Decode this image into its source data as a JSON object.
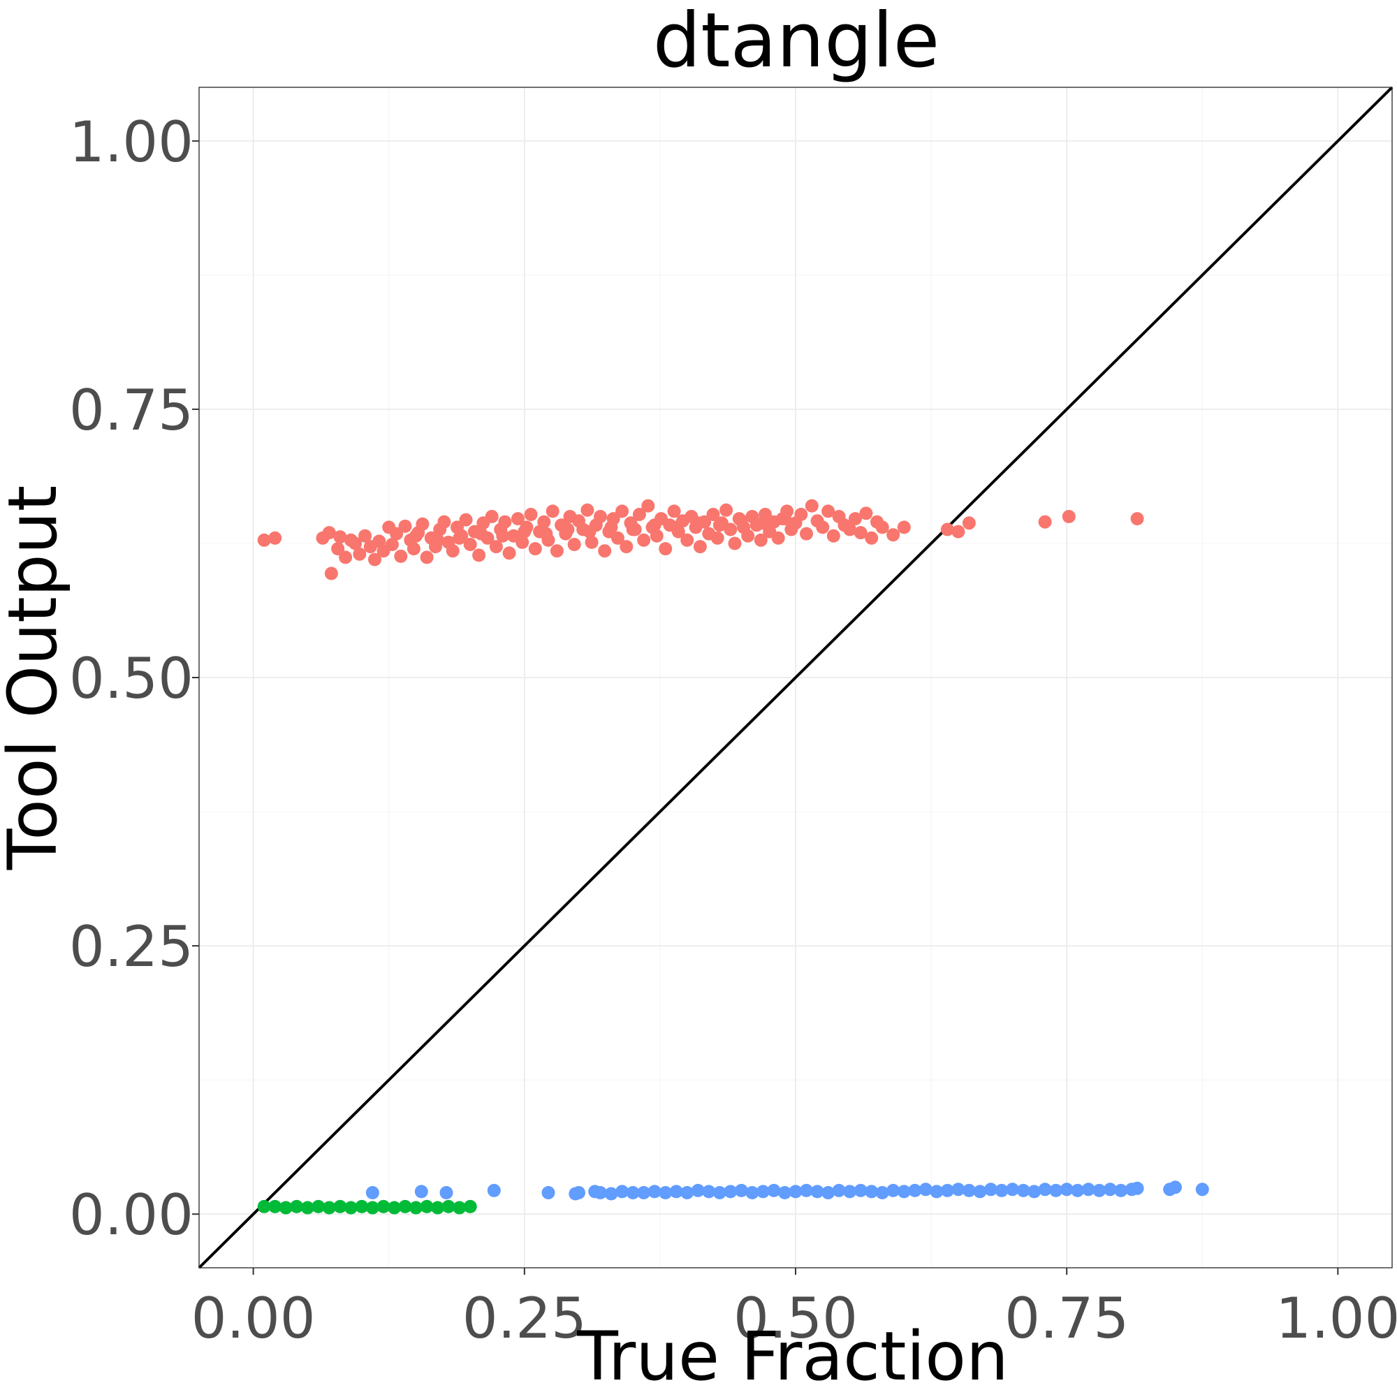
{
  "chart_data": {
    "type": "scatter",
    "title": "dtangle",
    "xlabel": "True Fraction",
    "ylabel": "Tool Output",
    "xlim": [
      -0.05,
      1.05
    ],
    "ylim": [
      -0.05,
      1.05
    ],
    "x_ticks": [
      0.0,
      0.25,
      0.5,
      0.75,
      1.0
    ],
    "y_ticks": [
      0.0,
      0.25,
      0.5,
      0.75,
      1.0
    ],
    "x_tick_labels": [
      "0.00",
      "0.25",
      "0.50",
      "0.75",
      "1.00"
    ],
    "y_tick_labels": [
      "0.00",
      "0.25",
      "0.50",
      "0.75",
      "1.00"
    ],
    "grid": true,
    "legend": "none",
    "reference_line": {
      "slope": 1,
      "intercept": 0,
      "color": "#000000"
    },
    "series": [
      {
        "color": "#F8766D",
        "points": [
          [
            0.064,
            0.63
          ],
          [
            0.07,
            0.635
          ],
          [
            0.072,
            0.597
          ],
          [
            0.078,
            0.62
          ],
          [
            0.08,
            0.631
          ],
          [
            0.085,
            0.612
          ],
          [
            0.09,
            0.628
          ],
          [
            0.094,
            0.625
          ],
          [
            0.098,
            0.615
          ],
          [
            0.103,
            0.632
          ],
          [
            0.108,
            0.622
          ],
          [
            0.112,
            0.61
          ],
          [
            0.116,
            0.627
          ],
          [
            0.12,
            0.618
          ],
          [
            0.125,
            0.64
          ],
          [
            0.128,
            0.624
          ],
          [
            0.132,
            0.634
          ],
          [
            0.136,
            0.613
          ],
          [
            0.14,
            0.641
          ],
          [
            0.145,
            0.628
          ],
          [
            0.148,
            0.62
          ],
          [
            0.152,
            0.635
          ],
          [
            0.156,
            0.643
          ],
          [
            0.16,
            0.612
          ],
          [
            0.164,
            0.63
          ],
          [
            0.168,
            0.622
          ],
          [
            0.172,
            0.638
          ],
          [
            0.176,
            0.645
          ],
          [
            0.18,
            0.626
          ],
          [
            0.184,
            0.618
          ],
          [
            0.188,
            0.64
          ],
          [
            0.192,
            0.632
          ],
          [
            0.196,
            0.647
          ],
          [
            0.2,
            0.624
          ],
          [
            0.204,
            0.636
          ],
          [
            0.208,
            0.614
          ],
          [
            0.212,
            0.644
          ],
          [
            0.216,
            0.63
          ],
          [
            0.22,
            0.65
          ],
          [
            0.224,
            0.622
          ],
          [
            0.228,
            0.638
          ],
          [
            0.232,
            0.645
          ],
          [
            0.236,
            0.616
          ],
          [
            0.24,
            0.632
          ],
          [
            0.244,
            0.648
          ],
          [
            0.248,
            0.626
          ],
          [
            0.252,
            0.64
          ],
          [
            0.256,
            0.652
          ],
          [
            0.26,
            0.62
          ],
          [
            0.264,
            0.636
          ],
          [
            0.268,
            0.645
          ],
          [
            0.272,
            0.628
          ],
          [
            0.276,
            0.655
          ],
          [
            0.28,
            0.618
          ],
          [
            0.284,
            0.642
          ],
          [
            0.288,
            0.634
          ],
          [
            0.292,
            0.65
          ],
          [
            0.296,
            0.624
          ],
          [
            0.3,
            0.646
          ],
          [
            0.304,
            0.638
          ],
          [
            0.308,
            0.656
          ],
          [
            0.312,
            0.626
          ],
          [
            0.316,
            0.642
          ],
          [
            0.32,
            0.65
          ],
          [
            0.324,
            0.618
          ],
          [
            0.328,
            0.636
          ],
          [
            0.332,
            0.648
          ],
          [
            0.336,
            0.63
          ],
          [
            0.34,
            0.655
          ],
          [
            0.344,
            0.622
          ],
          [
            0.348,
            0.644
          ],
          [
            0.352,
            0.638
          ],
          [
            0.356,
            0.652
          ],
          [
            0.36,
            0.628
          ],
          [
            0.364,
            0.66
          ],
          [
            0.368,
            0.64
          ],
          [
            0.372,
            0.632
          ],
          [
            0.376,
            0.648
          ],
          [
            0.38,
            0.62
          ],
          [
            0.384,
            0.642
          ],
          [
            0.388,
            0.655
          ],
          [
            0.392,
            0.636
          ],
          [
            0.396,
            0.646
          ],
          [
            0.4,
            0.628
          ],
          [
            0.404,
            0.65
          ],
          [
            0.408,
            0.64
          ],
          [
            0.412,
            0.622
          ],
          [
            0.416,
            0.645
          ],
          [
            0.42,
            0.634
          ],
          [
            0.424,
            0.652
          ],
          [
            0.428,
            0.63
          ],
          [
            0.432,
            0.644
          ],
          [
            0.436,
            0.656
          ],
          [
            0.44,
            0.638
          ],
          [
            0.444,
            0.625
          ],
          [
            0.448,
            0.648
          ],
          [
            0.452,
            0.64
          ],
          [
            0.456,
            0.632
          ],
          [
            0.46,
            0.65
          ],
          [
            0.464,
            0.642
          ],
          [
            0.468,
            0.628
          ],
          [
            0.472,
            0.652
          ],
          [
            0.476,
            0.636
          ],
          [
            0.48,
            0.645
          ],
          [
            0.484,
            0.63
          ],
          [
            0.488,
            0.648
          ],
          [
            0.492,
            0.655
          ],
          [
            0.496,
            0.638
          ],
          [
            0.5,
            0.644
          ],
          [
            0.505,
            0.652
          ],
          [
            0.51,
            0.634
          ],
          [
            0.515,
            0.66
          ],
          [
            0.52,
            0.646
          ],
          [
            0.525,
            0.64
          ],
          [
            0.53,
            0.655
          ],
          [
            0.535,
            0.632
          ],
          [
            0.54,
            0.65
          ],
          [
            0.545,
            0.642
          ],
          [
            0.55,
            0.638
          ],
          [
            0.555,
            0.648
          ],
          [
            0.56,
            0.635
          ],
          [
            0.565,
            0.653
          ],
          [
            0.57,
            0.63
          ],
          [
            0.575,
            0.645
          ],
          [
            0.58,
            0.64
          ],
          [
            0.59,
            0.633
          ],
          [
            0.6,
            0.64
          ],
          [
            0.64,
            0.638
          ],
          [
            0.65,
            0.636
          ],
          [
            0.66,
            0.644
          ],
          [
            0.73,
            0.645
          ],
          [
            0.752,
            0.65
          ],
          [
            0.815,
            0.648
          ],
          [
            0.01,
            0.628
          ],
          [
            0.02,
            0.63
          ],
          [
            0.15,
            0.632
          ],
          [
            0.17,
            0.628
          ],
          [
            0.19,
            0.63
          ],
          [
            0.21,
            0.634
          ],
          [
            0.23,
            0.632
          ],
          [
            0.25,
            0.636
          ],
          [
            0.27,
            0.634
          ],
          [
            0.29,
            0.638
          ],
          [
            0.31,
            0.636
          ],
          [
            0.33,
            0.64
          ],
          [
            0.35,
            0.638
          ],
          [
            0.37,
            0.642
          ],
          [
            0.39,
            0.64
          ],
          [
            0.41,
            0.644
          ],
          [
            0.43,
            0.642
          ],
          [
            0.45,
            0.646
          ],
          [
            0.47,
            0.644
          ],
          [
            0.49,
            0.648
          ]
        ]
      },
      {
        "color": "#619CFF",
        "points": [
          [
            0.11,
            0.02
          ],
          [
            0.155,
            0.021
          ],
          [
            0.178,
            0.02
          ],
          [
            0.222,
            0.022
          ],
          [
            0.272,
            0.02
          ],
          [
            0.297,
            0.019
          ],
          [
            0.3,
            0.02
          ],
          [
            0.315,
            0.021
          ],
          [
            0.32,
            0.02
          ],
          [
            0.33,
            0.019
          ],
          [
            0.34,
            0.021
          ],
          [
            0.35,
            0.02
          ],
          [
            0.36,
            0.02
          ],
          [
            0.37,
            0.021
          ],
          [
            0.38,
            0.02
          ],
          [
            0.39,
            0.021
          ],
          [
            0.4,
            0.02
          ],
          [
            0.41,
            0.022
          ],
          [
            0.42,
            0.021
          ],
          [
            0.43,
            0.02
          ],
          [
            0.44,
            0.021
          ],
          [
            0.45,
            0.022
          ],
          [
            0.46,
            0.02
          ],
          [
            0.47,
            0.021
          ],
          [
            0.48,
            0.022
          ],
          [
            0.49,
            0.02
          ],
          [
            0.5,
            0.021
          ],
          [
            0.51,
            0.022
          ],
          [
            0.52,
            0.021
          ],
          [
            0.53,
            0.02
          ],
          [
            0.54,
            0.022
          ],
          [
            0.55,
            0.021
          ],
          [
            0.56,
            0.022
          ],
          [
            0.57,
            0.021
          ],
          [
            0.58,
            0.02
          ],
          [
            0.59,
            0.022
          ],
          [
            0.6,
            0.021
          ],
          [
            0.61,
            0.022
          ],
          [
            0.62,
            0.023
          ],
          [
            0.63,
            0.021
          ],
          [
            0.64,
            0.022
          ],
          [
            0.65,
            0.023
          ],
          [
            0.66,
            0.022
          ],
          [
            0.67,
            0.021
          ],
          [
            0.68,
            0.023
          ],
          [
            0.69,
            0.022
          ],
          [
            0.7,
            0.023
          ],
          [
            0.71,
            0.022
          ],
          [
            0.72,
            0.021
          ],
          [
            0.73,
            0.023
          ],
          [
            0.74,
            0.022
          ],
          [
            0.75,
            0.023
          ],
          [
            0.76,
            0.022
          ],
          [
            0.77,
            0.023
          ],
          [
            0.78,
            0.022
          ],
          [
            0.79,
            0.023
          ],
          [
            0.8,
            0.022
          ],
          [
            0.81,
            0.023
          ],
          [
            0.815,
            0.024
          ],
          [
            0.845,
            0.023
          ],
          [
            0.85,
            0.025
          ],
          [
            0.875,
            0.023
          ]
        ]
      },
      {
        "color": "#00BA38",
        "points": [
          [
            0.01,
            0.007
          ],
          [
            0.02,
            0.007
          ],
          [
            0.03,
            0.006
          ],
          [
            0.04,
            0.007
          ],
          [
            0.05,
            0.006
          ],
          [
            0.06,
            0.007
          ],
          [
            0.07,
            0.006
          ],
          [
            0.08,
            0.007
          ],
          [
            0.09,
            0.006
          ],
          [
            0.1,
            0.007
          ],
          [
            0.11,
            0.006
          ],
          [
            0.12,
            0.007
          ],
          [
            0.13,
            0.006
          ],
          [
            0.14,
            0.007
          ],
          [
            0.15,
            0.006
          ],
          [
            0.16,
            0.007
          ],
          [
            0.17,
            0.006
          ],
          [
            0.18,
            0.007
          ],
          [
            0.19,
            0.006
          ],
          [
            0.2,
            0.007
          ]
        ]
      }
    ]
  }
}
